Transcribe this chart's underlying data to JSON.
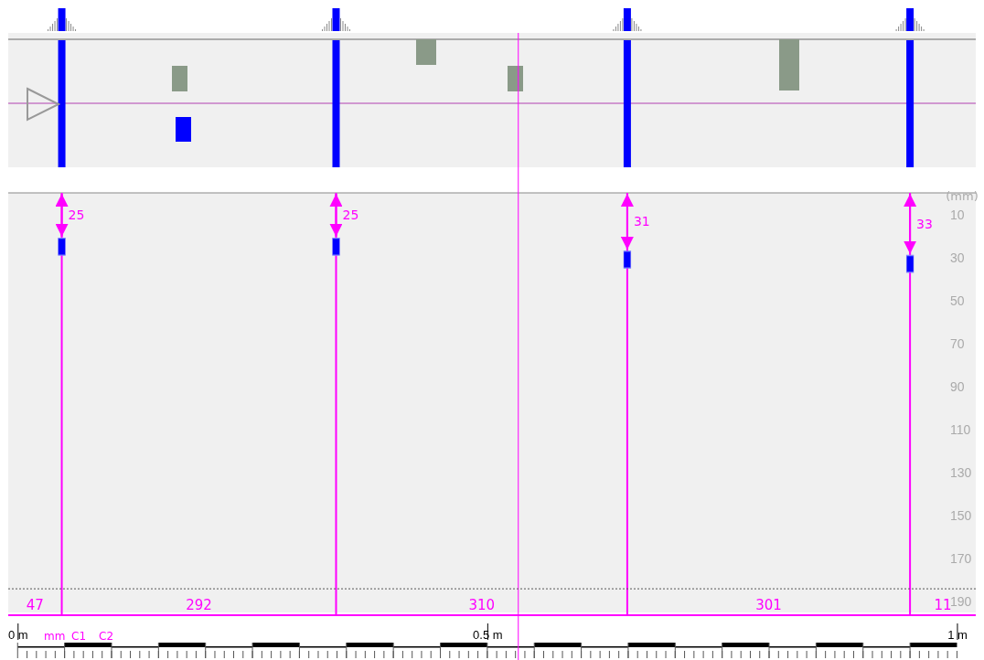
{
  "chart_data": {
    "type": "scatter",
    "ylabel": "(mm)",
    "x": [
      0.047,
      0.339,
      0.649,
      0.95
    ],
    "series": [
      {
        "color": "#0000ff",
        "values": [
          25,
          25,
          31,
          33
        ]
      }
    ],
    "data_labels": true,
    "marker": "square",
    "grid": false,
    "xlim": [
      -0.01,
      1.02
    ],
    "xticks": [
      {
        "value": 0,
        "label": "0 m"
      },
      {
        "value": 0.5,
        "label": "0.5 m"
      },
      {
        "value": 1,
        "label": "1 m"
      }
    ],
    "ylim": [
      195,
      0
    ],
    "yticks": [
      10,
      30,
      50,
      70,
      90,
      110,
      130,
      150,
      170,
      190
    ],
    "ref_lines": [
      {
        "axis": "x",
        "value": 0.533,
        "color": "#ff00ff"
      },
      {
        "axis": "x",
        "value": 0.047,
        "color": "#ff00ff"
      },
      {
        "axis": "x",
        "value": 0.339,
        "color": "#ff00ff"
      },
      {
        "axis": "x",
        "value": 0.649,
        "color": "#ff00ff"
      },
      {
        "axis": "x",
        "value": 0.95,
        "color": "#ff00ff"
      },
      {
        "axis": "y",
        "value": 184,
        "color": "#555555",
        "line_style": "dotted"
      }
    ],
    "annotations": [
      "47",
      "292",
      "310",
      "301",
      "11",
      "mm",
      "C1",
      "C2"
    ]
  }
}
